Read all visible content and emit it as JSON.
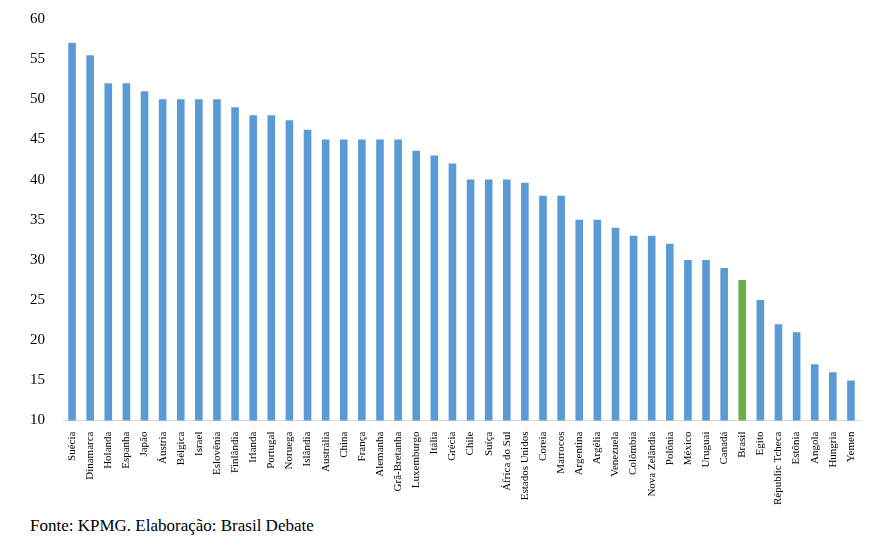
{
  "chart_data": {
    "type": "bar",
    "categories": [
      "Suécia",
      "Dinamarca",
      "Holanda",
      "Espanha",
      "Japão",
      "Áustria",
      "Bélgica",
      "Israel",
      "Eslovênia",
      "Finlândia",
      "Irlanda",
      "Portugal",
      "Noruega",
      "Islândia",
      "Austrália",
      "China",
      "França",
      "Alemanha",
      "Grã-Bretanha",
      "Luxemburgo",
      "Itália",
      "Grécia",
      "Chile",
      "Suíça",
      "África do Sul",
      "Estados Unidos",
      "Coreia",
      "Marrocos",
      "Argentina",
      "Argélia",
      "Venezuela",
      "Colômbia",
      "Nova Zelândia",
      "Polônia",
      "México",
      "Uruguai",
      "Canadá",
      "Brasil",
      "Egito",
      "Républic Tcheca",
      "Estônia",
      "Angola",
      "Hungria",
      "Yemen"
    ],
    "values": [
      57,
      55.5,
      52,
      52,
      51,
      50,
      50,
      50,
      50,
      49,
      48,
      48,
      47.4,
      46.2,
      45,
      45,
      45,
      45,
      45,
      43.6,
      43,
      42,
      40,
      40,
      40,
      39.6,
      38,
      38,
      35,
      35,
      34,
      33,
      33,
      32,
      30,
      30,
      29,
      27.5,
      25,
      22,
      21,
      17,
      16,
      15
    ],
    "colors": [
      "#5b9bd5",
      "#5b9bd5",
      "#5b9bd5",
      "#5b9bd5",
      "#5b9bd5",
      "#5b9bd5",
      "#5b9bd5",
      "#5b9bd5",
      "#5b9bd5",
      "#5b9bd5",
      "#5b9bd5",
      "#5b9bd5",
      "#5b9bd5",
      "#5b9bd5",
      "#5b9bd5",
      "#5b9bd5",
      "#5b9bd5",
      "#5b9bd5",
      "#5b9bd5",
      "#5b9bd5",
      "#5b9bd5",
      "#5b9bd5",
      "#5b9bd5",
      "#5b9bd5",
      "#5b9bd5",
      "#5b9bd5",
      "#5b9bd5",
      "#5b9bd5",
      "#5b9bd5",
      "#5b9bd5",
      "#5b9bd5",
      "#5b9bd5",
      "#5b9bd5",
      "#5b9bd5",
      "#5b9bd5",
      "#5b9bd5",
      "#5b9bd5",
      "#70ad47",
      "#5b9bd5",
      "#5b9bd5",
      "#5b9bd5",
      "#5b9bd5",
      "#5b9bd5",
      "#5b9bd5"
    ],
    "ylim": [
      10,
      60
    ],
    "yticks": [
      10,
      15,
      20,
      25,
      30,
      35,
      40,
      45,
      50,
      55,
      60
    ],
    "grid": false,
    "source": "Fonte: KPMG. Elaboração: Brasil Debate"
  }
}
